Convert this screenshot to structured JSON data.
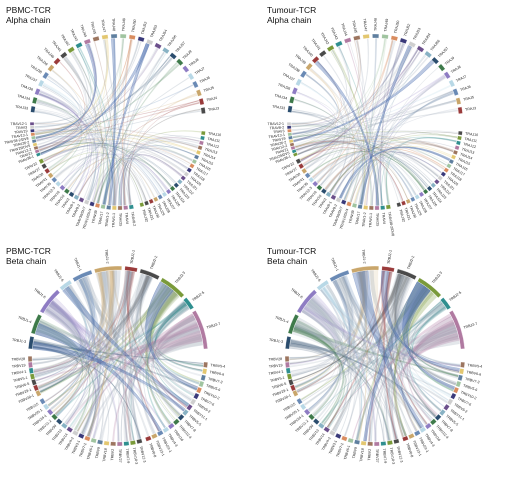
{
  "panels": [
    {
      "id": "pbmc-alpha",
      "title": "PBMC-TCR",
      "subtitle": "Alpha chain",
      "top_segments": [
        "TRAJ33",
        "TRAJ34",
        "TRAJ36",
        "TRAJ37",
        "TRAJ38",
        "TRAJ39",
        "TRAJ40",
        "TRAJ41",
        "TRAJ42",
        "TRAJ43",
        "TRAJ44",
        "TRAJ45",
        "TRAJ47",
        "TRAJ48",
        "TRAJ49",
        "TRAJ50",
        "TRAJ52",
        "TRAJ53",
        "TRAJ54",
        "TRAJ56",
        "TRAJ57",
        "TRAJ9",
        "TRAJ8",
        "TRAJ7",
        "TRAJ6",
        "TRAJ5",
        "TRAJ4",
        "TRAJ3"
      ],
      "left_segments": [
        "TRAV38-1",
        "TRAV21",
        "TRAV12-2",
        "TRAV29/DV5",
        "TRAV26-2",
        "TRAV38-2/DV8",
        "TRAV13-1",
        "TRAV19",
        "TRAV3",
        "TRAV12-1"
      ],
      "bottom_segments": [
        "TRAV8-2",
        "TRAV4",
        "TRAV25",
        "TRAV1-1",
        "TRAV1-2",
        "TRAV17",
        "TRAV39",
        "TRAV14/DV4",
        "TRAV36/DV7",
        "TRAV9-2",
        "TRAV8-1",
        "TRAV2",
        "TRAV10",
        "TRAV16",
        "TRAV12-3",
        "TRAV35",
        "TRAV41",
        "TRAV30",
        "TRAV27",
        "TRAV22"
      ],
      "right_segments": [
        "TRAJ10",
        "TRAJ11",
        "TRAJ12",
        "TRAJ13",
        "TRAJ14",
        "TRAJ15",
        "TRAJ16",
        "TRAJ17",
        "TRAJ18",
        "TRAJ20",
        "TRAJ21",
        "TRAJ22",
        "TRAJ23",
        "TRAJ24",
        "TRAJ26",
        "TRAJ27",
        "TRAJ28",
        "TRAJ29",
        "TRAJ30",
        "TRAJ31",
        "TRAJ32"
      ]
    },
    {
      "id": "tumour-alpha",
      "title": "Tumour-TCR",
      "subtitle": "Alpha chain",
      "top_segments": [
        "TRAJ33",
        "TRAJ34",
        "TRAJ36",
        "TRAJ37",
        "TRAJ38",
        "TRAJ39",
        "TRAJ40",
        "TRAJ41",
        "TRAJ42",
        "TRAJ43",
        "TRAJ44",
        "TRAJ45",
        "TRAJ47",
        "TRAJ48",
        "TRAJ49",
        "TRAJ50",
        "TRAJ52",
        "TRAJ53",
        "TRAJ54",
        "TRAJ56",
        "TRAJ57",
        "TRAJ9",
        "TRAJ8",
        "TRAJ7",
        "TRAJ6",
        "TRAJ5",
        "TRAJ3"
      ],
      "left_segments": [
        "TRAV38-1",
        "TRAV29/DV5",
        "TRAV21",
        "TRAV12-2",
        "TRAV26-2",
        "TRAV19",
        "TRAV13-1",
        "TRAV3",
        "TRAV8-2",
        "TRAV12-1"
      ],
      "bottom_segments": [
        "TRAV38-2/DV8",
        "TRAV4",
        "TRAV25",
        "TRAV1-1",
        "TRAV1-2",
        "TRAV17",
        "TRAV39",
        "TRAV14/DV4",
        "TRAV36/DV7",
        "TRAV9-2",
        "TRAV8-1",
        "TRAV2",
        "TRAV10",
        "TRAV16",
        "TRAV12-3",
        "TRAV35",
        "TRAV41",
        "TRAV30",
        "TRAV27",
        "TRAV22"
      ],
      "right_segments": [
        "TRAJ10",
        "TRAJ11",
        "TRAJ12",
        "TRAJ13",
        "TRAJ14",
        "TRAJ15",
        "TRAJ16",
        "TRAJ17",
        "TRAJ18",
        "TRAJ20",
        "TRAJ21",
        "TRAJ22",
        "TRAJ23",
        "TRAJ24",
        "TRAJ26",
        "TRAJ27",
        "TRAJ28",
        "TRAJ29",
        "TRAJ30",
        "TRAJ31",
        "TRAJ32"
      ]
    },
    {
      "id": "pbmc-beta",
      "title": "PBMC-TCR",
      "subtitle": "Beta chain",
      "top_segments": [
        "TRBJ1-3",
        "TRBJ1-4",
        "TRBJ1-5",
        "TRBJ1-6",
        "TRBJ1-1",
        "TRBJ1-2",
        "TRBJ2-1",
        "TRBJ2-2",
        "TRBJ2-3",
        "TRBJ2-5",
        "TRBJ2-7"
      ],
      "left_segments": [
        "TRBV20-1",
        "TRBV29-1",
        "TRBV6-5",
        "TRBV5-1",
        "TRBV4-1",
        "TRBV19",
        "TRBV28"
      ],
      "bottom_segments": [
        "TRBV12-3",
        "TRBV10-3",
        "TRBV7-9",
        "TRBV27",
        "TRBV2",
        "TRBV18",
        "TRBV9",
        "TRBV6-1",
        "TRBV7-2",
        "TRBV3-1",
        "TRBV4-2",
        "TRBV14",
        "TRBV13",
        "TRBV30",
        "TRBV11-2",
        "TRBV24-1",
        "TRBV25-1",
        "TRBV15"
      ],
      "right_segments": [
        "TRBV5-4",
        "TRBV6-6",
        "TRBV7-3",
        "TRBV5-6",
        "TRBV10-2",
        "TRBV7-6",
        "TRBV6-2",
        "TRBV11-1",
        "TRBV5-5",
        "TRBV7-8",
        "TRBV12-4",
        "TRBV16",
        "TRBV4-3",
        "TRBV21-1",
        "TRBV23-1",
        "TRBV6-8"
      ]
    },
    {
      "id": "tumour-beta",
      "title": "Tumour-TCR",
      "subtitle": "Beta chain",
      "top_segments": [
        "TRBJ1-3",
        "TRBJ1-4",
        "TRBJ1-5",
        "TRBJ1-6",
        "TRBJ1-1",
        "TRBJ1-2",
        "TRBJ2-1",
        "TRBJ2-2",
        "TRBJ2-3",
        "TRBJ2-5",
        "TRBJ2-7"
      ],
      "left_segments": [
        "TRBV20-1",
        "TRBV29-1",
        "TRBV6-5",
        "TRBV5-1",
        "TRBV4-1",
        "TRBV19",
        "TRBV28"
      ],
      "bottom_segments": [
        "TRBV12-3",
        "TRBV10-3",
        "TRBV7-9",
        "TRBV27",
        "TRBV2",
        "TRBV18",
        "TRBV9",
        "TRBV6-1",
        "TRBV7-2",
        "TRBV3-1",
        "TRBV4-2",
        "TRBV14",
        "TRBV13",
        "TRBV30",
        "TRBV11-2",
        "TRBV24-1",
        "TRBV25-1",
        "TRBV15"
      ],
      "right_segments": [
        "TRBV5-4",
        "TRBV6-6",
        "TRBV7-3",
        "TRBV5-6",
        "TRBV10-2",
        "TRBV7-6",
        "TRBV6-2",
        "TRBV11-1",
        "TRBV5-5",
        "TRBV7-8",
        "TRBV12-4",
        "TRBV16",
        "TRBV4-3",
        "TRBV21-1",
        "TRBV23-1",
        "TRBV6-8"
      ]
    }
  ],
  "colors": {
    "palette": [
      "#2b4d6e",
      "#3e7a4a",
      "#8e7cc3",
      "#b8d8e6",
      "#6a8ab5",
      "#c9a66b",
      "#9a3b3b",
      "#4a4a4a",
      "#7a9a3a",
      "#2f8f8f",
      "#b07aa1",
      "#9c755f",
      "#e3c770",
      "#5f7f9f",
      "#a0c4a0",
      "#d98c5f",
      "#3a3a7a",
      "#cfcfcf",
      "#6b4f8b",
      "#88b2c4"
    ],
    "chord_base": "#9aa8b5",
    "highlight": "#3b62a8"
  }
}
